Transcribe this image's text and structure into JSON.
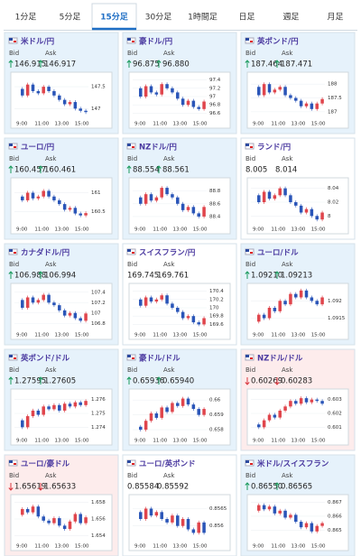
{
  "tabs": [
    "1分足",
    "5分足",
    "15分足",
    "30分足",
    "1時間足",
    "日足",
    "週足",
    "月足"
  ],
  "active_tab": 2,
  "bid_label": "Bid",
  "ask_label": "Ask",
  "time_labels": [
    "9:00",
    "11:00",
    "13:00",
    "15:00"
  ],
  "cards": [
    {
      "name": "米ドル/円",
      "bid": "146.915",
      "ask": "146.917",
      "direction": "up",
      "ylim": [
        146.8,
        147.75
      ],
      "yticks": [
        147.5,
        147
      ],
      "closes": [
        147.45,
        147.3,
        147.55,
        147.4,
        147.35,
        147.5,
        147.4,
        147.3,
        147.2,
        147.1,
        147.15,
        147.0,
        146.95,
        146.92
      ]
    },
    {
      "name": "豪ドル/円",
      "bid": "96.875",
      "ask": "96.880",
      "direction": "up",
      "ylim": [
        96.5,
        97.5
      ],
      "yticks": [
        97.4,
        97.2,
        97,
        96.8,
        96.6
      ],
      "closes": [
        97.2,
        97.0,
        97.25,
        97.1,
        97.05,
        97.3,
        97.2,
        97.1,
        96.95,
        96.8,
        96.9,
        96.75,
        96.7,
        96.88
      ]
    },
    {
      "name": "英ポンド/円",
      "bid": "187.464",
      "ask": "187.471",
      "direction": "up",
      "ylim": [
        186.8,
        188.3
      ],
      "yticks": [
        188,
        187.5,
        187
      ],
      "closes": [
        187.9,
        187.6,
        188.0,
        187.7,
        187.8,
        187.9,
        187.6,
        187.5,
        187.4,
        187.2,
        187.3,
        187.1,
        187.3,
        187.46
      ]
    },
    {
      "name": "ユーロ/円",
      "bid": "160.457",
      "ask": "160.461",
      "direction": "up",
      "ylim": [
        160.2,
        161.3
      ],
      "yticks": [
        161,
        160.5
      ],
      "closes": [
        160.9,
        160.8,
        161.0,
        160.85,
        160.9,
        161.05,
        160.9,
        160.8,
        160.7,
        160.55,
        160.6,
        160.45,
        160.4,
        160.46
      ]
    },
    {
      "name": "NZドル/円",
      "bid": "88.554",
      "ask": "88.561",
      "direction": "up",
      "ylim": [
        88.3,
        88.95
      ],
      "yticks": [
        88.8,
        88.6,
        88.4
      ],
      "closes": [
        88.7,
        88.6,
        88.75,
        88.65,
        88.7,
        88.85,
        88.75,
        88.7,
        88.6,
        88.5,
        88.55,
        88.45,
        88.4,
        88.55
      ]
    },
    {
      "name": "ランド/円",
      "bid": "8.005",
      "ask": "8.014",
      "direction": "none",
      "ylim": [
        7.99,
        8.05
      ],
      "yticks": [
        8.04,
        8.02,
        8
      ],
      "closes": [
        8.03,
        8.02,
        8.035,
        8.025,
        8.03,
        8.04,
        8.03,
        8.02,
        8.015,
        8.005,
        8.01,
        8.0,
        7.995,
        8.005
      ]
    },
    {
      "name": "カナダドル/円",
      "bid": "106.988",
      "ask": "106.994",
      "direction": "up",
      "ylim": [
        106.7,
        107.5
      ],
      "yticks": [
        107.4,
        107.2,
        107,
        106.8
      ],
      "closes": [
        107.25,
        107.1,
        107.3,
        107.2,
        107.25,
        107.35,
        107.2,
        107.15,
        107.05,
        106.95,
        107.0,
        106.9,
        106.85,
        106.99
      ]
    },
    {
      "name": "スイスフラン/円",
      "bid": "169.745",
      "ask": "169.761",
      "direction": "none",
      "ylim": [
        169.5,
        170.5
      ],
      "yticks": [
        170.4,
        170.2,
        170,
        169.8,
        169.6
      ],
      "closes": [
        170.2,
        170.05,
        170.25,
        170.15,
        170.2,
        170.3,
        170.1,
        170.0,
        169.9,
        169.75,
        169.8,
        169.65,
        169.6,
        169.75
      ]
    },
    {
      "name": "ユーロ/ドル",
      "bid": "1.09210",
      "ask": "1.09213",
      "direction": "up",
      "ylim": [
        1.0912,
        1.0924
      ],
      "yticks": [
        1.092,
        1.0915
      ],
      "closes": [
        1.0914,
        1.0916,
        1.0915,
        1.0918,
        1.0917,
        1.092,
        1.0919,
        1.0922,
        1.0921,
        1.0923,
        1.0921,
        1.092,
        1.0919,
        1.0921
      ]
    },
    {
      "name": "英ポンド/ドル",
      "bid": "1.27595",
      "ask": "1.27605",
      "direction": "up",
      "ylim": [
        1.2735,
        1.2765
      ],
      "yticks": [
        1.276,
        1.275,
        1.274
      ],
      "closes": [
        1.2745,
        1.274,
        1.2748,
        1.2752,
        1.2749,
        1.2755,
        1.2753,
        1.2756,
        1.2752,
        1.2757,
        1.2755,
        1.2758,
        1.2756,
        1.2759
      ]
    },
    {
      "name": "豪ドル/ドル",
      "bid": "0.65936",
      "ask": "0.65940",
      "direction": "up",
      "ylim": [
        0.6577,
        0.6605
      ],
      "yticks": [
        0.66,
        0.659,
        0.658
      ],
      "closes": [
        0.6582,
        0.658,
        0.6586,
        0.6591,
        0.6588,
        0.6595,
        0.6592,
        0.6598,
        0.6596,
        0.6601,
        0.6597,
        0.6594,
        0.659,
        0.6594
      ]
    },
    {
      "name": "NZドル/ドル",
      "bid": "0.60269",
      "ask": "0.60283",
      "direction": "down",
      "ylim": [
        0.6005,
        0.6035
      ],
      "yticks": [
        0.603,
        0.602,
        0.601
      ],
      "closes": [
        0.6012,
        0.601,
        0.6015,
        0.6019,
        0.6017,
        0.6022,
        0.6025,
        0.6029,
        0.6027,
        0.6031,
        0.6028,
        0.603,
        0.6029,
        0.6027
      ]
    },
    {
      "name": "ユーロ/豪ドル",
      "bid": "1.65619",
      "ask": "1.65633",
      "direction": "down",
      "ylim": [
        1.6535,
        1.6585
      ],
      "yticks": [
        1.658,
        1.656,
        1.654
      ],
      "closes": [
        1.6565,
        1.6572,
        1.6568,
        1.6575,
        1.6563,
        1.6558,
        1.6555,
        1.6561,
        1.6552,
        1.6548,
        1.6557,
        1.6566,
        1.6555,
        1.6562
      ]
    },
    {
      "name": "ユーロ/英ポンド",
      "bid": "0.85584",
      "ask": "0.85592",
      "direction": "none",
      "ylim": [
        0.8556,
        0.8568
      ],
      "yticks": [
        0.8565,
        0.856
      ],
      "closes": [
        0.8564,
        0.8562,
        0.8565,
        0.8563,
        0.8564,
        0.8562,
        0.8561,
        0.8563,
        0.856,
        0.8562,
        0.8559,
        0.8558,
        0.8561,
        0.8558
      ]
    },
    {
      "name": "米ドル/スイスフラン",
      "bid": "0.86550",
      "ask": "0.86565",
      "direction": "up",
      "ylim": [
        0.8643,
        0.8673
      ],
      "yticks": [
        0.867,
        0.866,
        0.865
      ],
      "closes": [
        0.8664,
        0.8668,
        0.8665,
        0.8667,
        0.8662,
        0.8664,
        0.8659,
        0.8661,
        0.8656,
        0.8652,
        0.8655,
        0.8649,
        0.8653,
        0.8655
      ]
    }
  ]
}
